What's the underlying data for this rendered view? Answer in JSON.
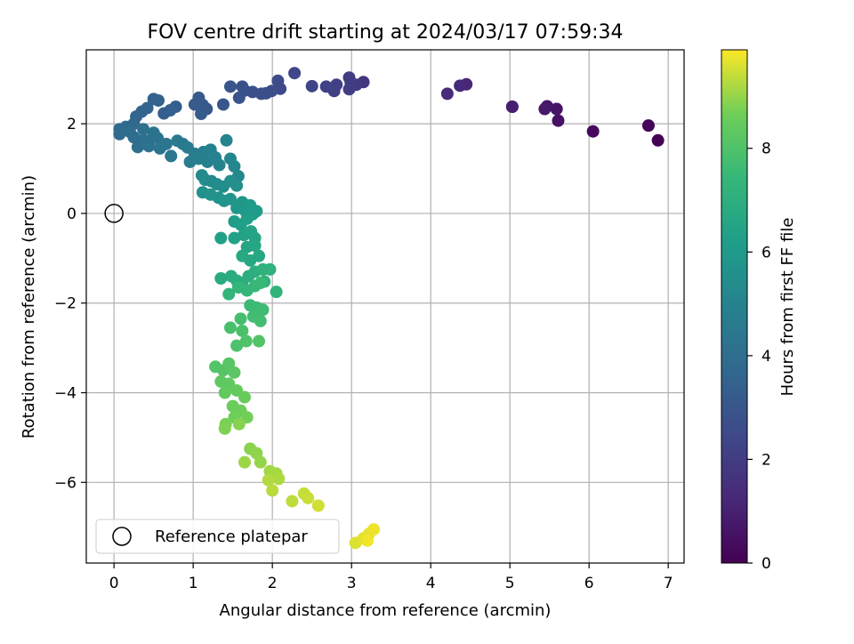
{
  "chart_data": {
    "type": "scatter",
    "title": "FOV centre drift starting at 2024/03/17 07:59:34",
    "xlabel": "Angular distance from reference (arcmin)",
    "ylabel": "Rotation from reference (arcmin)",
    "xlim": [
      -0.35,
      7.2
    ],
    "ylim": [
      -7.8,
      3.65
    ],
    "xticks": [
      0,
      1,
      2,
      3,
      4,
      5,
      6,
      7
    ],
    "yticks": [
      -6,
      -4,
      -2,
      0,
      2
    ],
    "grid": true,
    "colormap": "viridis",
    "colorbar": {
      "label": "Hours from first FF file",
      "range": [
        0,
        9.9
      ],
      "ticks": [
        0,
        2,
        4,
        6,
        8
      ]
    },
    "legend": {
      "placement": "lower-left",
      "entries": [
        "Reference platepar"
      ]
    },
    "reference_point": {
      "label": "Reference platepar",
      "x": 0,
      "y": 0
    },
    "series": [
      {
        "values_note": "x, y in arcmin; c = hours from first FF file",
        "points": [
          {
            "x": 6.87,
            "y": 1.63,
            "c": 0.0
          },
          {
            "x": 6.75,
            "y": 1.96,
            "c": 0.1
          },
          {
            "x": 6.05,
            "y": 1.83,
            "c": 0.3
          },
          {
            "x": 5.61,
            "y": 2.07,
            "c": 0.5
          },
          {
            "x": 5.59,
            "y": 2.33,
            "c": 0.6
          },
          {
            "x": 5.47,
            "y": 2.39,
            "c": 0.7
          },
          {
            "x": 5.44,
            "y": 2.33,
            "c": 0.75
          },
          {
            "x": 5.03,
            "y": 2.38,
            "c": 0.9
          },
          {
            "x": 5.03,
            "y": 2.38,
            "c": 0.95
          },
          {
            "x": 4.45,
            "y": 2.88,
            "c": 1.2
          },
          {
            "x": 4.37,
            "y": 2.85,
            "c": 1.3
          },
          {
            "x": 4.21,
            "y": 2.67,
            "c": 1.4
          },
          {
            "x": 3.15,
            "y": 2.93,
            "c": 1.8
          },
          {
            "x": 3.06,
            "y": 2.87,
            "c": 1.9
          },
          {
            "x": 2.99,
            "y": 2.92,
            "c": 1.95
          },
          {
            "x": 2.97,
            "y": 3.03,
            "c": 2.0
          },
          {
            "x": 2.97,
            "y": 2.77,
            "c": 2.05
          },
          {
            "x": 2.81,
            "y": 2.87,
            "c": 2.1
          },
          {
            "x": 2.78,
            "y": 2.73,
            "c": 2.15
          },
          {
            "x": 2.68,
            "y": 2.83,
            "c": 2.2
          },
          {
            "x": 2.5,
            "y": 2.84,
            "c": 2.3
          },
          {
            "x": 2.28,
            "y": 3.13,
            "c": 2.4
          },
          {
            "x": 2.1,
            "y": 2.78,
            "c": 2.5
          },
          {
            "x": 2.07,
            "y": 2.96,
            "c": 2.55
          },
          {
            "x": 1.99,
            "y": 2.73,
            "c": 2.6
          },
          {
            "x": 1.92,
            "y": 2.68,
            "c": 2.65
          },
          {
            "x": 1.86,
            "y": 2.67,
            "c": 2.7
          },
          {
            "x": 1.75,
            "y": 2.71,
            "c": 2.75
          },
          {
            "x": 1.65,
            "y": 2.74,
            "c": 2.8
          },
          {
            "x": 1.62,
            "y": 2.83,
            "c": 2.85
          },
          {
            "x": 1.58,
            "y": 2.58,
            "c": 2.9
          },
          {
            "x": 1.47,
            "y": 2.83,
            "c": 2.95
          },
          {
            "x": 1.38,
            "y": 2.43,
            "c": 3.0
          },
          {
            "x": 1.17,
            "y": 2.33,
            "c": 3.05
          },
          {
            "x": 1.12,
            "y": 2.42,
            "c": 3.1
          },
          {
            "x": 1.07,
            "y": 2.58,
            "c": 3.15
          },
          {
            "x": 1.02,
            "y": 2.43,
            "c": 3.2
          },
          {
            "x": 1.1,
            "y": 2.22,
            "c": 3.25
          },
          {
            "x": 0.78,
            "y": 2.38,
            "c": 3.3
          },
          {
            "x": 0.71,
            "y": 2.3,
            "c": 3.35
          },
          {
            "x": 0.63,
            "y": 2.23,
            "c": 3.4
          },
          {
            "x": 0.56,
            "y": 2.52,
            "c": 3.45
          },
          {
            "x": 0.5,
            "y": 2.55,
            "c": 3.5
          },
          {
            "x": 0.42,
            "y": 2.35,
            "c": 3.55
          },
          {
            "x": 0.35,
            "y": 2.27,
            "c": 3.6
          },
          {
            "x": 0.28,
            "y": 2.16,
            "c": 3.65
          },
          {
            "x": 0.25,
            "y": 2.0,
            "c": 3.7
          },
          {
            "x": 0.15,
            "y": 1.93,
            "c": 3.75
          },
          {
            "x": 0.07,
            "y": 1.88,
            "c": 3.8
          },
          {
            "x": 0.07,
            "y": 1.77,
            "c": 3.85
          },
          {
            "x": 0.2,
            "y": 1.82,
            "c": 3.9
          },
          {
            "x": 0.25,
            "y": 1.7,
            "c": 3.95
          },
          {
            "x": 0.32,
            "y": 1.62,
            "c": 4.0
          },
          {
            "x": 0.3,
            "y": 1.48,
            "c": 4.05
          },
          {
            "x": 0.37,
            "y": 1.88,
            "c": 4.1
          },
          {
            "x": 0.4,
            "y": 1.62,
            "c": 4.15
          },
          {
            "x": 0.44,
            "y": 1.5,
            "c": 4.2
          },
          {
            "x": 0.5,
            "y": 1.8,
            "c": 4.25
          },
          {
            "x": 0.55,
            "y": 1.68,
            "c": 4.3
          },
          {
            "x": 0.58,
            "y": 1.45,
            "c": 4.35
          },
          {
            "x": 0.66,
            "y": 1.55,
            "c": 4.4
          },
          {
            "x": 0.72,
            "y": 1.28,
            "c": 4.45
          },
          {
            "x": 0.8,
            "y": 1.62,
            "c": 4.5
          },
          {
            "x": 0.87,
            "y": 1.55,
            "c": 4.55
          },
          {
            "x": 0.93,
            "y": 1.47,
            "c": 4.6
          },
          {
            "x": 0.96,
            "y": 1.15,
            "c": 4.65
          },
          {
            "x": 1.02,
            "y": 1.33,
            "c": 4.7
          },
          {
            "x": 1.07,
            "y": 1.22,
            "c": 4.75
          },
          {
            "x": 1.13,
            "y": 1.37,
            "c": 4.8
          },
          {
            "x": 1.18,
            "y": 1.15,
            "c": 4.85
          },
          {
            "x": 1.22,
            "y": 1.42,
            "c": 4.9
          },
          {
            "x": 1.28,
            "y": 1.25,
            "c": 4.95
          },
          {
            "x": 1.33,
            "y": 1.08,
            "c": 5.0
          },
          {
            "x": 1.42,
            "y": 1.63,
            "c": 5.05
          },
          {
            "x": 1.47,
            "y": 1.22,
            "c": 5.1
          },
          {
            "x": 1.52,
            "y": 1.05,
            "c": 5.15
          },
          {
            "x": 1.57,
            "y": 0.83,
            "c": 5.2
          },
          {
            "x": 1.11,
            "y": 0.85,
            "c": 5.25
          },
          {
            "x": 1.15,
            "y": 0.75,
            "c": 5.3
          },
          {
            "x": 1.23,
            "y": 0.72,
            "c": 5.35
          },
          {
            "x": 1.3,
            "y": 0.65,
            "c": 5.4
          },
          {
            "x": 1.38,
            "y": 0.6,
            "c": 5.45
          },
          {
            "x": 1.47,
            "y": 0.72,
            "c": 5.5
          },
          {
            "x": 1.55,
            "y": 0.62,
            "c": 5.55
          },
          {
            "x": 1.12,
            "y": 0.47,
            "c": 5.6
          },
          {
            "x": 1.22,
            "y": 0.42,
            "c": 5.65
          },
          {
            "x": 1.32,
            "y": 0.35,
            "c": 5.7
          },
          {
            "x": 1.39,
            "y": 0.28,
            "c": 5.75
          },
          {
            "x": 1.47,
            "y": 0.32,
            "c": 5.8
          },
          {
            "x": 1.55,
            "y": 0.12,
            "c": 5.85
          },
          {
            "x": 1.62,
            "y": 0.25,
            "c": 5.9
          },
          {
            "x": 1.66,
            "y": 0.05,
            "c": 5.95
          },
          {
            "x": 1.72,
            "y": 0.18,
            "c": 6.0
          },
          {
            "x": 1.75,
            "y": -0.02,
            "c": 6.05
          },
          {
            "x": 1.8,
            "y": 0.05,
            "c": 6.1
          },
          {
            "x": 1.52,
            "y": -0.18,
            "c": 6.15
          },
          {
            "x": 1.6,
            "y": -0.25,
            "c": 6.2
          },
          {
            "x": 1.68,
            "y": -0.12,
            "c": 6.25
          },
          {
            "x": 1.35,
            "y": -0.55,
            "c": 6.3
          },
          {
            "x": 1.52,
            "y": -0.55,
            "c": 6.35
          },
          {
            "x": 1.64,
            "y": -0.48,
            "c": 6.4
          },
          {
            "x": 1.73,
            "y": -0.4,
            "c": 6.45
          },
          {
            "x": 1.78,
            "y": -0.55,
            "c": 6.5
          },
          {
            "x": 1.68,
            "y": -0.75,
            "c": 6.55
          },
          {
            "x": 1.78,
            "y": -0.72,
            "c": 6.6
          },
          {
            "x": 1.83,
            "y": -0.95,
            "c": 6.65
          },
          {
            "x": 1.72,
            "y": -1.05,
            "c": 6.7
          },
          {
            "x": 1.62,
            "y": -0.95,
            "c": 6.75
          },
          {
            "x": 1.35,
            "y": -1.45,
            "c": 6.8
          },
          {
            "x": 1.48,
            "y": -1.4,
            "c": 6.85
          },
          {
            "x": 1.55,
            "y": -1.5,
            "c": 6.9
          },
          {
            "x": 1.62,
            "y": -1.55,
            "c": 6.95
          },
          {
            "x": 1.7,
            "y": -1.4,
            "c": 7.0
          },
          {
            "x": 1.78,
            "y": -1.3,
            "c": 7.05
          },
          {
            "x": 1.88,
            "y": -1.25,
            "c": 7.1
          },
          {
            "x": 1.97,
            "y": -1.25,
            "c": 7.15
          },
          {
            "x": 1.9,
            "y": -1.52,
            "c": 7.2
          },
          {
            "x": 2.05,
            "y": -1.75,
            "c": 7.25
          },
          {
            "x": 1.45,
            "y": -1.8,
            "c": 7.3
          },
          {
            "x": 1.57,
            "y": -1.65,
            "c": 7.35
          },
          {
            "x": 1.68,
            "y": -1.72,
            "c": 7.4
          },
          {
            "x": 1.78,
            "y": -1.62,
            "c": 7.45
          },
          {
            "x": 1.85,
            "y": -1.55,
            "c": 7.5
          },
          {
            "x": 1.72,
            "y": -2.05,
            "c": 7.55
          },
          {
            "x": 1.8,
            "y": -2.1,
            "c": 7.6
          },
          {
            "x": 1.88,
            "y": -2.15,
            "c": 7.65
          },
          {
            "x": 1.76,
            "y": -2.3,
            "c": 7.7
          },
          {
            "x": 1.85,
            "y": -2.4,
            "c": 7.75
          },
          {
            "x": 1.6,
            "y": -2.35,
            "c": 7.8
          },
          {
            "x": 1.47,
            "y": -2.55,
            "c": 7.85
          },
          {
            "x": 1.62,
            "y": -2.62,
            "c": 7.9
          },
          {
            "x": 1.55,
            "y": -2.95,
            "c": 7.95
          },
          {
            "x": 1.67,
            "y": -2.85,
            "c": 8.0
          },
          {
            "x": 1.83,
            "y": -2.85,
            "c": 8.05
          },
          {
            "x": 1.28,
            "y": -3.42,
            "c": 8.1
          },
          {
            "x": 1.38,
            "y": -3.5,
            "c": 8.15
          },
          {
            "x": 1.45,
            "y": -3.35,
            "c": 8.2
          },
          {
            "x": 1.52,
            "y": -3.55,
            "c": 8.25
          },
          {
            "x": 1.35,
            "y": -3.75,
            "c": 8.3
          },
          {
            "x": 1.45,
            "y": -3.8,
            "c": 8.35
          },
          {
            "x": 1.4,
            "y": -4.0,
            "c": 8.4
          },
          {
            "x": 1.55,
            "y": -3.95,
            "c": 8.45
          },
          {
            "x": 1.65,
            "y": -4.1,
            "c": 8.5
          },
          {
            "x": 1.5,
            "y": -4.3,
            "c": 8.55
          },
          {
            "x": 1.6,
            "y": -4.4,
            "c": 8.6
          },
          {
            "x": 1.52,
            "y": -4.55,
            "c": 8.65
          },
          {
            "x": 1.68,
            "y": -4.55,
            "c": 8.7
          },
          {
            "x": 1.41,
            "y": -4.7,
            "c": 8.75
          },
          {
            "x": 1.4,
            "y": -4.8,
            "c": 8.8
          },
          {
            "x": 1.58,
            "y": -4.7,
            "c": 8.85
          },
          {
            "x": 1.72,
            "y": -5.25,
            "c": 8.9
          },
          {
            "x": 1.8,
            "y": -5.35,
            "c": 8.95
          },
          {
            "x": 1.85,
            "y": -5.55,
            "c": 9.0
          },
          {
            "x": 1.65,
            "y": -5.55,
            "c": 9.05
          },
          {
            "x": 1.97,
            "y": -5.75,
            "c": 9.1
          },
          {
            "x": 2.05,
            "y": -5.8,
            "c": 9.15
          },
          {
            "x": 2.08,
            "y": -5.92,
            "c": 9.2
          },
          {
            "x": 1.95,
            "y": -5.95,
            "c": 9.25
          },
          {
            "x": 2.0,
            "y": -6.18,
            "c": 9.3
          },
          {
            "x": 2.25,
            "y": -6.42,
            "c": 9.35
          },
          {
            "x": 2.4,
            "y": -6.25,
            "c": 9.4
          },
          {
            "x": 2.45,
            "y": -6.35,
            "c": 9.45
          },
          {
            "x": 2.58,
            "y": -6.52,
            "c": 9.5
          },
          {
            "x": 3.05,
            "y": -7.35,
            "c": 9.6
          },
          {
            "x": 3.15,
            "y": -7.25,
            "c": 9.65
          },
          {
            "x": 3.22,
            "y": -7.15,
            "c": 9.7
          },
          {
            "x": 3.28,
            "y": -7.05,
            "c": 9.75
          },
          {
            "x": 3.2,
            "y": -7.3,
            "c": 9.8
          }
        ]
      }
    ]
  }
}
